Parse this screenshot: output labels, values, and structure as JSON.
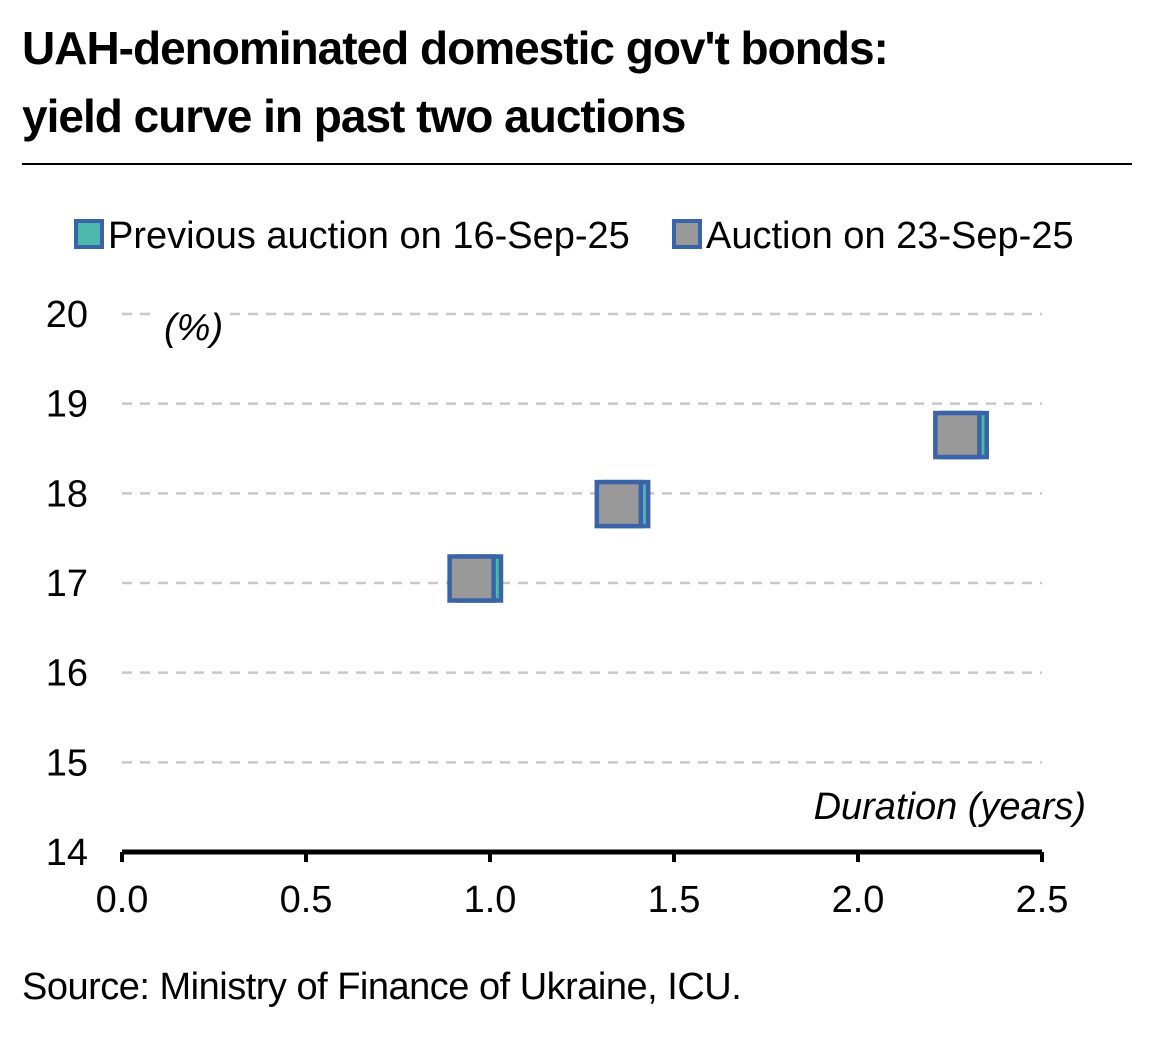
{
  "title_lines": [
    "UAH-denominated domestic gov't bonds:",
    "yield curve in past two auctions"
  ],
  "source": "Source: Ministry of Finance of Ukraine, ICU.",
  "colors": {
    "grid": "#c8c8c8",
    "axis": "#000000",
    "marker_border": "#3b63a8",
    "previous_fill": "#4db8ad",
    "current_fill": "#999999"
  },
  "chart_data": {
    "type": "scatter",
    "title": "UAH-denominated domestic gov't bonds: yield curve in past two auctions",
    "xlabel": "Duration (years)",
    "ylabel": "(%)",
    "xlim": [
      0,
      2.5
    ],
    "ylim": [
      14,
      20
    ],
    "x_ticks": [
      "0.0",
      "0.5",
      "1.0",
      "1.5",
      "2.0",
      "2.5"
    ],
    "y_ticks": [
      "20",
      "19",
      "18",
      "17",
      "16",
      "15",
      "14"
    ],
    "grid": "horizontal dashed",
    "legend_position": "top",
    "series": [
      {
        "name": "Previous auction on 16-Sep-25",
        "color": "#4db8ad",
        "points": [
          {
            "x": 0.97,
            "y": 17.05
          },
          {
            "x": 1.37,
            "y": 17.88
          },
          {
            "x": 2.29,
            "y": 18.65
          }
        ]
      },
      {
        "name": "Auction on 23-Sep-25",
        "color": "#999999",
        "points": [
          {
            "x": 0.95,
            "y": 17.05
          },
          {
            "x": 1.35,
            "y": 17.88
          },
          {
            "x": 2.27,
            "y": 18.65
          }
        ]
      }
    ]
  }
}
